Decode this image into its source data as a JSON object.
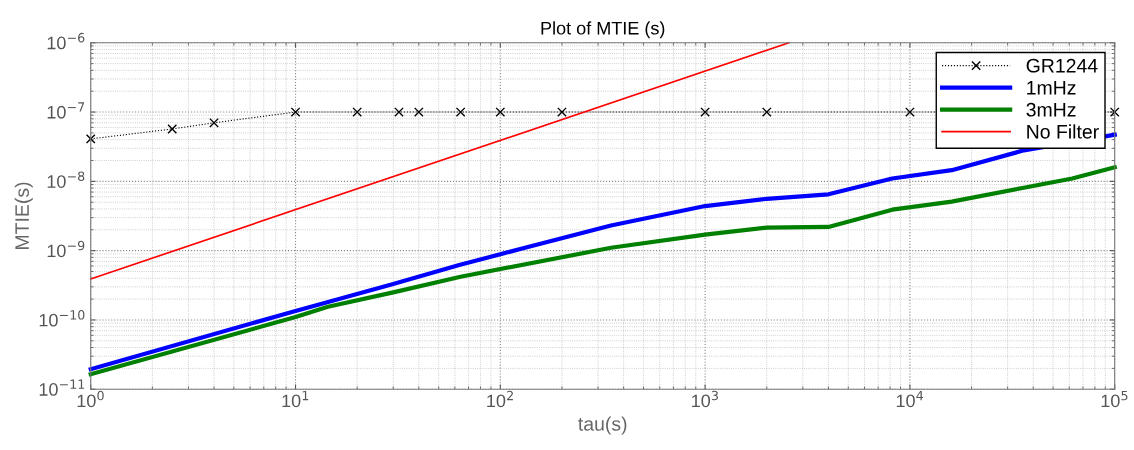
{
  "chart_data": {
    "type": "line",
    "title": "Plot of MTIE (s)",
    "xlabel": "tau(s)",
    "ylabel": "MTIE(s)",
    "log": "xy",
    "grid": true,
    "legend": "top right",
    "xlim": [
      1,
      100000
    ],
    "ylim": [
      1e-11,
      1e-06
    ],
    "xticks": [
      {
        "value": 1,
        "label": "10$^{0}$"
      },
      {
        "value": 10,
        "label": "10$^{1}$"
      },
      {
        "value": 100,
        "label": "10$^{2}$"
      },
      {
        "value": 1000,
        "label": "10$^{3}$"
      },
      {
        "value": 10000,
        "label": "10$^{4}$"
      },
      {
        "value": 100000,
        "label": "10$^{5}$"
      }
    ],
    "yticks": [
      {
        "value": 1e-11,
        "label": "10$^{−11}$"
      },
      {
        "value": 1e-10,
        "label": "10$^{−10}$"
      },
      {
        "value": 1e-09,
        "label": "10$^{−9}$"
      },
      {
        "value": 1e-08,
        "label": "10$^{−8}$"
      },
      {
        "value": 1e-07,
        "label": "10$^{−7}$"
      },
      {
        "value": 1e-06,
        "label": "10$^{−6}$"
      }
    ],
    "series": [
      {
        "name": "GR1244",
        "color": "#000000",
        "marker": "cross",
        "line_style": "dotted",
        "x": [
          1,
          2.5,
          4,
          10,
          20,
          32,
          40,
          64,
          100,
          200,
          1000,
          2000,
          10000,
          100000
        ],
        "values": [
          4.1e-08,
          5.7e-08,
          7e-08,
          1e-07,
          1e-07,
          1e-07,
          1e-07,
          1e-07,
          1e-07,
          1e-07,
          1e-07,
          1e-07,
          1e-07,
          1e-07
        ]
      },
      {
        "name": "1mHz",
        "color": "#0000ff",
        "line_style": "solid",
        "x": [
          1,
          10,
          30,
          63,
          132,
          347,
          1000,
          2000,
          4000,
          8200,
          16000,
          36000,
          100000
        ],
        "values": [
          1.95e-11,
          1.35e-10,
          3.3e-10,
          6.2e-10,
          1.1e-09,
          2.3e-09,
          4.4e-09,
          5.6e-09,
          6.5e-09,
          1.1e-08,
          1.45e-08,
          2.8e-08,
          4.7e-08
        ]
      },
      {
        "name": "3mHz",
        "color": "#008000",
        "line_style": "solid",
        "x": [
          1,
          10,
          14.4,
          30,
          64,
          347,
          1000,
          2000,
          4000,
          8200,
          16000,
          36000,
          62000,
          100000
        ],
        "values": [
          1.65e-11,
          1.1e-10,
          1.55e-10,
          2.5e-10,
          4.2e-10,
          1.1e-09,
          1.7e-09,
          2.15e-09,
          2.2e-09,
          3.9e-09,
          5.1e-09,
          8.1e-09,
          1.1e-08,
          1.6e-08
        ]
      },
      {
        "name": "No Filter",
        "color": "#ff0000",
        "line_style": "solid",
        "x": [
          1,
          2564
        ],
        "values": [
          3.9e-10,
          1e-06
        ]
      }
    ]
  }
}
